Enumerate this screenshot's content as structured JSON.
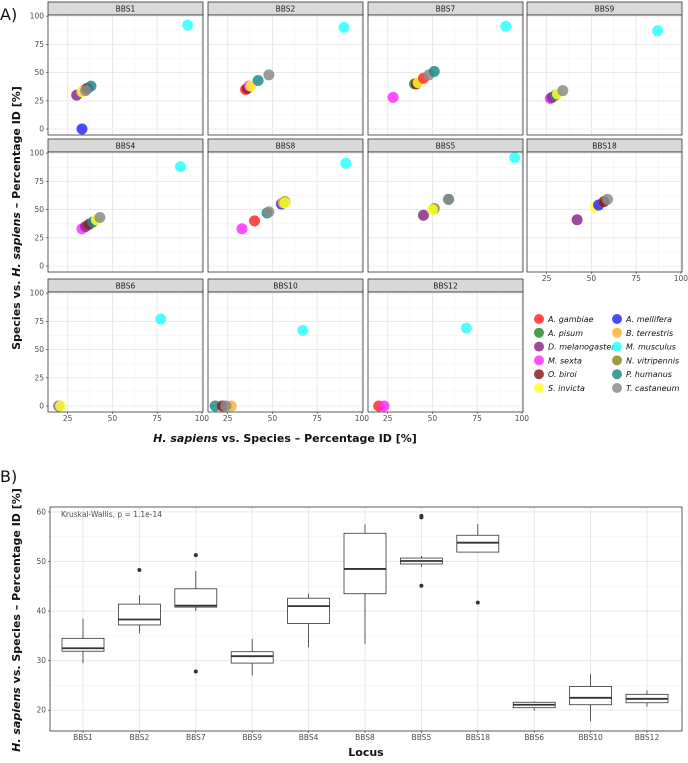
{
  "figure": {
    "panel_a_label": "A)",
    "panel_b_label": "B)"
  },
  "colors": {
    "A. gambiae": "#ff2a2a",
    "A. mellifera": "#2a2aff",
    "A. pisum": "#2e8b2e",
    "B. terrestris": "#ffb030",
    "D. melanogaster": "#8b2c8b",
    "M. musculus": "#2effff",
    "M. sexta": "#ff2eff",
    "N. vitripennis": "#8b8b1f",
    "O. biroi": "#8b2020",
    "P. humanus": "#208b8b",
    "S. invicta": "#ffff2e",
    "T. castaneum": "#8b8b8b"
  },
  "chart_data": [
    {
      "type": "scatter",
      "title": "",
      "xlabel": {
        "italic": "H. sapiens",
        "rest": " vs. Species  – Percentage ID [%]"
      },
      "ylabel": {
        "pre": "Species vs. ",
        "italic": "H. sapiens",
        "rest": " – Percentage ID [%]"
      },
      "xlim": [
        14,
        100.6
      ],
      "ylim": [
        -5.3,
        101
      ],
      "xticks": [
        25,
        50,
        75,
        100
      ],
      "yticks": [
        0,
        25,
        50,
        75,
        100
      ],
      "grid": true,
      "legend_position": "bottom-right",
      "legend": [
        "A. gambiae",
        "A. mellifera",
        "A. pisum",
        "B. terrestris",
        "D. melanogaster",
        "M. musculus",
        "M. sexta",
        "N. vitripennis",
        "O. biroi",
        "P. humanus",
        "S. invicta",
        "T. castaneum"
      ],
      "facets": [
        {
          "locus": "BBS1",
          "points": [
            [
              "M. musculus",
              92,
              92
            ],
            [
              "A. mellifera",
              33,
              0
            ],
            [
              "D. melanogaster",
              30,
              30
            ],
            [
              "M. sexta",
              34,
              34
            ],
            [
              "A. gambiae",
              35,
              35
            ],
            [
              "S. invicta",
              33,
              33
            ],
            [
              "O. biroi",
              36,
              36
            ],
            [
              "P. humanus",
              38,
              38
            ],
            [
              "T. castaneum",
              35,
              34
            ]
          ]
        },
        {
          "locus": "BBS2",
          "points": [
            [
              "M. musculus",
              90,
              90
            ],
            [
              "A. gambiae",
              35,
              35
            ],
            [
              "O. biroi",
              36,
              36
            ],
            [
              "M. sexta",
              37,
              38
            ],
            [
              "S. invicta",
              38,
              38
            ],
            [
              "P. humanus",
              42,
              43
            ],
            [
              "T. castaneum",
              48,
              48
            ]
          ]
        },
        {
          "locus": "BBS7",
          "points": [
            [
              "M. musculus",
              91,
              91
            ],
            [
              "M. sexta",
              28,
              28
            ],
            [
              "A. pisum",
              40,
              40
            ],
            [
              "O. biroi",
              41,
              40
            ],
            [
              "S. invicta",
              42,
              41
            ],
            [
              "A. gambiae",
              45,
              45
            ],
            [
              "T. castaneum",
              48,
              48
            ],
            [
              "P. humanus",
              51,
              51
            ]
          ]
        },
        {
          "locus": "BBS9",
          "points": [
            [
              "M. musculus",
              87,
              87
            ],
            [
              "M. sexta",
              27,
              27
            ],
            [
              "D. melanogaster",
              28,
              28
            ],
            [
              "P. humanus",
              30,
              30
            ],
            [
              "S. invicta",
              31,
              31
            ],
            [
              "T. castaneum",
              34,
              34
            ]
          ]
        },
        {
          "locus": "BBS4",
          "points": [
            [
              "M. musculus",
              88,
              88
            ],
            [
              "M. sexta",
              33,
              33
            ],
            [
              "D. melanogaster",
              35,
              35
            ],
            [
              "O. biroi",
              37,
              37
            ],
            [
              "P. humanus",
              39,
              39
            ],
            [
              "S. invicta",
              41,
              41
            ],
            [
              "T. castaneum",
              43,
              43
            ]
          ]
        },
        {
          "locus": "BBS8",
          "points": [
            [
              "M. musculus",
              91,
              91
            ],
            [
              "M. sexta",
              33,
              33
            ],
            [
              "A. gambiae",
              40,
              40
            ],
            [
              "P. humanus",
              47,
              47
            ],
            [
              "T. castaneum",
              48,
              48
            ],
            [
              "A. mellifera",
              55,
              55
            ],
            [
              "B. terrestris",
              56,
              56
            ],
            [
              "N. vitripennis",
              57,
              57
            ],
            [
              "S. invicta",
              57,
              56
            ]
          ]
        },
        {
          "locus": "BBS5",
          "points": [
            [
              "M. musculus",
              96,
              96
            ],
            [
              "D. melanogaster",
              45,
              45
            ],
            [
              "N. vitripennis",
              51,
              51
            ],
            [
              "S. invicta",
              50,
              50
            ],
            [
              "P. humanus",
              59,
              59
            ],
            [
              "T. castaneum",
              59,
              59
            ]
          ]
        },
        {
          "locus": "BBS18",
          "points": [
            [
              "D. melanogaster",
              42,
              41
            ],
            [
              "S. invicta",
              52,
              52
            ],
            [
              "A. mellifera",
              54,
              54
            ],
            [
              "O. biroi",
              57,
              57
            ],
            [
              "T. castaneum",
              59,
              59
            ]
          ]
        },
        {
          "locus": "BBS6",
          "points": [
            [
              "M. musculus",
              77,
              77
            ],
            [
              "D. melanogaster",
              20,
              0
            ],
            [
              "T. castaneum",
              20,
              0
            ],
            [
              "S. invicta",
              21,
              0
            ]
          ]
        },
        {
          "locus": "BBS10",
          "points": [
            [
              "M. musculus",
              67,
              67
            ],
            [
              "P. humanus",
              18,
              0
            ],
            [
              "O. biroi",
              22,
              0
            ],
            [
              "B. terrestris",
              27,
              0
            ],
            [
              "T. castaneum",
              24,
              0
            ]
          ]
        },
        {
          "locus": "BBS12",
          "points": [
            [
              "M. musculus",
              69,
              69
            ],
            [
              "A. gambiae",
              20,
              0
            ],
            [
              "M. sexta",
              23,
              0
            ]
          ]
        }
      ]
    },
    {
      "type": "box",
      "title": "",
      "annotation": "Kruskal-Wallis, p = 1.1e-14",
      "xlabel": "Locus",
      "ylabel": {
        "italic": "H. sapiens",
        "rest": " vs. Species  – Percentage ID [%]"
      },
      "ylim": [
        15.8,
        61
      ],
      "yticks": [
        20,
        30,
        40,
        50,
        60
      ],
      "grid": true,
      "categories": [
        "BBS1",
        "BBS2",
        "BBS7",
        "BBS9",
        "BBS4",
        "BBS8",
        "BBS5",
        "BBS18",
        "BBS6",
        "BBS10",
        "BBS12"
      ],
      "boxes": [
        {
          "min": 29.5,
          "q1": 31.9,
          "median": 32.5,
          "q3": 34.5,
          "max": 38.5,
          "outliers": []
        },
        {
          "min": 35.5,
          "q1": 37.2,
          "median": 38.3,
          "q3": 41.4,
          "max": 43.2,
          "outliers": [
            48.3
          ]
        },
        {
          "min": 40.0,
          "q1": 40.8,
          "median": 41.1,
          "q3": 44.5,
          "max": 48.1,
          "outliers": [
            51.3,
            27.8
          ]
        },
        {
          "min": 27.0,
          "q1": 29.5,
          "median": 30.9,
          "q3": 31.8,
          "max": 34.4,
          "outliers": []
        },
        {
          "min": 32.7,
          "q1": 37.5,
          "median": 41.0,
          "q3": 42.6,
          "max": 43.5,
          "outliers": []
        },
        {
          "min": 33.4,
          "q1": 43.5,
          "median": 48.5,
          "q3": 55.7,
          "max": 57.5,
          "outliers": []
        },
        {
          "min": 48.9,
          "q1": 49.5,
          "median": 50.1,
          "q3": 50.7,
          "max": 51.1,
          "outliers": [
            58.9,
            59.2,
            45.1
          ]
        },
        {
          "min": 51.9,
          "q1": 51.9,
          "median": 53.8,
          "q3": 55.3,
          "max": 57.6,
          "outliers": [
            41.7
          ]
        },
        {
          "min": 19.9,
          "q1": 20.5,
          "median": 21.1,
          "q3": 21.6,
          "max": 21.8,
          "outliers": []
        },
        {
          "min": 17.8,
          "q1": 21.1,
          "median": 22.5,
          "q3": 24.8,
          "max": 27.3,
          "outliers": []
        },
        {
          "min": 20.7,
          "q1": 21.5,
          "median": 22.3,
          "q3": 23.2,
          "max": 24.0,
          "outliers": []
        }
      ]
    }
  ]
}
